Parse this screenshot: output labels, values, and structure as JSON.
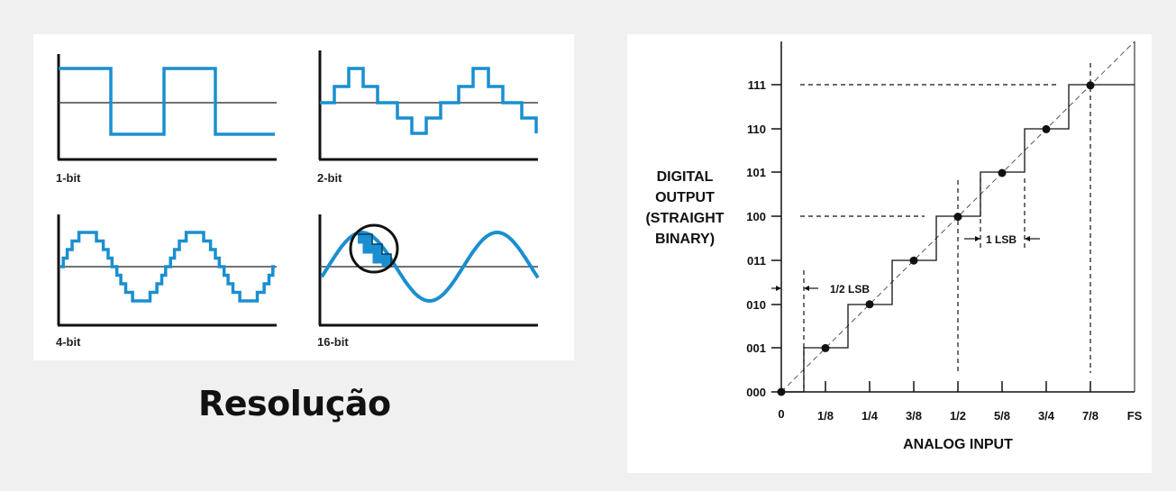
{
  "resolution_panel": {
    "title": "Resolução",
    "charts": [
      {
        "label": "1-bit",
        "bits": 1
      },
      {
        "label": "2-bit",
        "bits": 2
      },
      {
        "label": "4-bit",
        "bits": 4
      },
      {
        "label": "16-bit",
        "bits": 16
      }
    ],
    "colors": {
      "wave": "#1a8fd0",
      "axis": "#111111",
      "midline": "#444444"
    }
  },
  "transfer_panel": {
    "ylabel": [
      "DIGITAL",
      "OUTPUT",
      "(STRAIGHT",
      "BINARY)"
    ],
    "xlabel": "ANALOG INPUT",
    "y_ticks": [
      "000",
      "001",
      "010",
      "011",
      "100",
      "101",
      "110",
      "111"
    ],
    "x_ticks": [
      "0",
      "1/8",
      "1/4",
      "3/8",
      "1/2",
      "5/8",
      "3/4",
      "7/8",
      "FS"
    ],
    "annotations": {
      "half_lsb": "1/2 LSB",
      "one_lsb": "1 LSB"
    },
    "ideal_points": [
      [
        0,
        0
      ],
      [
        1,
        1
      ],
      [
        2,
        2
      ],
      [
        3,
        3
      ],
      [
        4,
        4
      ],
      [
        5,
        5
      ],
      [
        6,
        6
      ],
      [
        7,
        7
      ]
    ]
  }
}
